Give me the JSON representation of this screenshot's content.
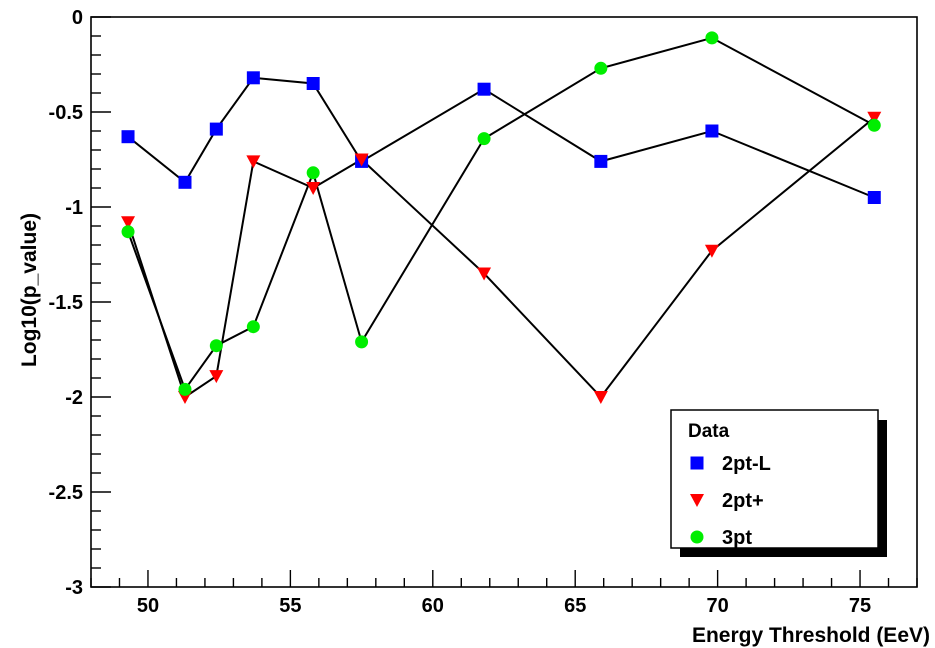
{
  "chart_data": {
    "type": "scatter",
    "xlabel": "Energy Threshold (EeV)",
    "ylabel": "Log10(p_value)",
    "xlim": [
      48,
      77
    ],
    "ylim": [
      -3,
      0
    ],
    "x_ticks": [
      50,
      55,
      60,
      65,
      70,
      75
    ],
    "x_tick_labels": [
      "50",
      "55",
      "60",
      "65",
      "70",
      "75"
    ],
    "y_ticks": [
      0,
      -0.5,
      -1,
      -1.5,
      -2,
      -2.5,
      -3
    ],
    "y_tick_labels": [
      "0",
      "-0.5",
      "-1",
      "-1.5",
      "-2",
      "-2.5",
      "-3"
    ],
    "grid": false,
    "legend": {
      "title": "Data",
      "placement": "bottom-right"
    },
    "x": [
      49.3,
      51.3,
      52.4,
      53.7,
      55.8,
      57.5,
      61.8,
      65.9,
      69.8,
      75.5
    ],
    "series": [
      {
        "name": "2pt-L",
        "marker": "square",
        "color": "#0000ff",
        "values": [
          -0.63,
          -0.87,
          -0.59,
          -0.32,
          -0.35,
          -0.76,
          -0.38,
          -0.76,
          -0.6,
          -0.95
        ]
      },
      {
        "name": "2pt+",
        "marker": "triangle-down",
        "color": "#ff0000",
        "values": [
          -1.08,
          -2.0,
          -1.89,
          -0.76,
          -0.9,
          -0.75,
          -1.35,
          -2.0,
          -1.23,
          -0.53
        ]
      },
      {
        "name": "3pt",
        "marker": "circle",
        "color": "#00ee00",
        "values": [
          -1.13,
          -1.96,
          -1.73,
          -1.63,
          -0.82,
          -1.71,
          -0.64,
          -0.27,
          -0.11,
          -0.57
        ]
      }
    ]
  }
}
